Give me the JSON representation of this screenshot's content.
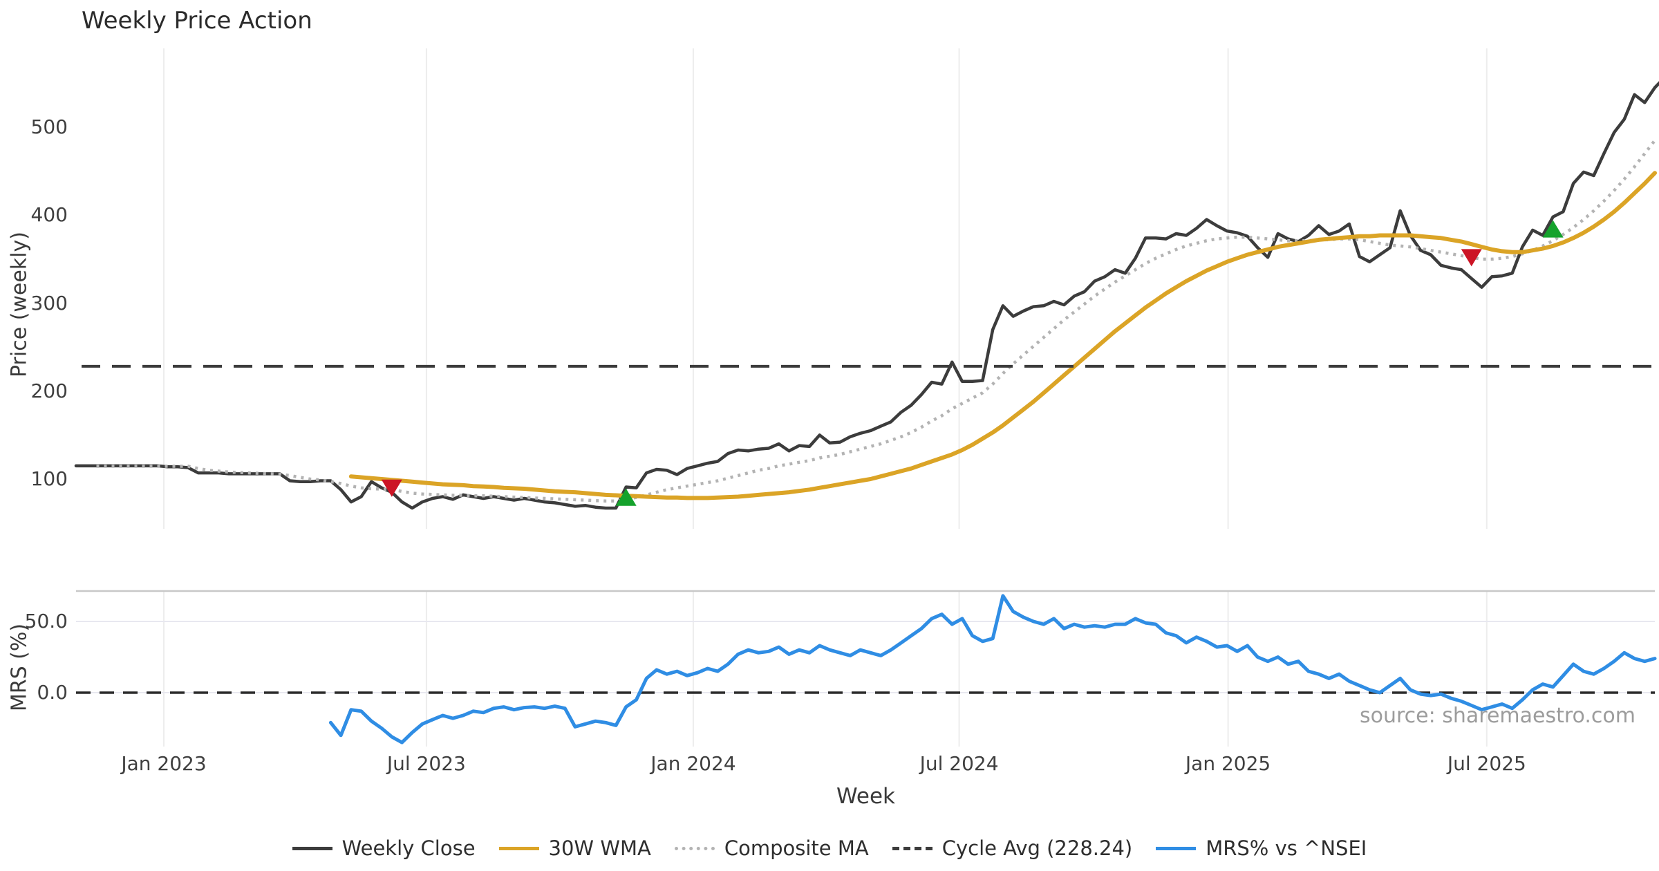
{
  "title": "Weekly Price Action",
  "source": "source: sharemaestro.com",
  "axes": {
    "price_label": "Price (weekly)",
    "mrs_label": "MRS (%)",
    "x_label": "Week",
    "price_ticks": [
      "100",
      "200",
      "300",
      "400",
      "500"
    ],
    "price_tick_values": [
      100,
      200,
      300,
      400,
      500
    ],
    "mrs_ticks": [
      "0.0",
      "50.0"
    ],
    "mrs_tick_values": [
      0,
      50
    ],
    "x_ticks": [
      "Jan 2023",
      "Jul 2023",
      "Jan 2024",
      "Jul 2024",
      "Jan 2025",
      "Jul 2025"
    ],
    "x_tick_weeks": [
      8.62,
      34.4,
      60.6,
      86.7,
      113.1,
      138.5
    ]
  },
  "colors": {
    "close": "#3c3c3c",
    "wma": "#dba426",
    "composite": "#b3b3b3",
    "cycle": "#3c3c3c",
    "mrs": "#2f8de4",
    "buy": "#15a22c",
    "sell": "#cc1425",
    "grid": "#ededed",
    "hgrid": "#e8e8f0",
    "spine": "#c8c8c8",
    "zero_dash": "#2b2b2b"
  },
  "legend": [
    {
      "label": "Weekly Close",
      "color": "#3c3c3c",
      "style": "solid"
    },
    {
      "label": "30W WMA",
      "color": "#dba426",
      "style": "solid"
    },
    {
      "label": "Composite MA",
      "color": "#b3b3b3",
      "style": "dotted"
    },
    {
      "label": "Cycle Avg (228.24)",
      "color": "#3c3c3c",
      "style": "dashed"
    },
    {
      "label": "MRS% vs ^NSEI",
      "color": "#2f8de4",
      "style": "solid"
    }
  ],
  "chart_data": {
    "type": "line",
    "title": "Weekly Price Action",
    "xlabel": "Week",
    "x_range_weeks": 155,
    "panels": [
      {
        "name": "price",
        "ylabel": "Price (weekly)",
        "ylim": [
          60,
          570
        ],
        "yticks": [
          100,
          200,
          300,
          400,
          500
        ],
        "cycle_avg": 228.24,
        "series": [
          {
            "name": "Weekly Close",
            "style": "solid",
            "start_week": 0,
            "values": [
              115,
              115,
              115,
              115,
              115,
              115,
              115,
              115,
              115,
              114,
              114,
              113,
              107,
              107,
              107,
              106,
              106,
              106,
              106,
              106,
              106,
              98,
              97,
              97,
              98,
              98,
              88,
              74,
              80,
              97,
              90,
              85,
              74,
              67,
              74,
              78,
              80,
              77,
              82,
              80,
              78,
              80,
              78,
              76,
              78,
              76,
              74,
              73,
              71,
              69,
              70,
              68,
              67,
              67,
              91,
              90,
              107,
              111,
              110,
              105,
              112,
              115,
              118,
              120,
              129,
              133,
              132,
              134,
              135,
              140,
              132,
              138,
              137,
              150,
              141,
              142,
              148,
              152,
              155,
              160,
              165,
              176,
              184,
              196,
              210,
              208,
              233,
              211,
              211,
              212,
              270,
              297,
              285,
              291,
              296,
              297,
              302,
              298,
              308,
              313,
              325,
              330,
              338,
              334,
              351,
              374,
              374,
              373,
              379,
              377,
              385,
              395,
              388,
              382,
              380,
              376,
              363,
              352,
              379,
              373,
              370,
              377,
              388,
              378,
              382,
              390,
              353,
              347,
              355,
              363,
              405,
              377,
              360,
              355,
              343,
              340,
              338,
              328,
              318,
              330,
              331,
              334,
              364,
              383,
              377,
              398,
              404,
              436,
              449,
              445,
              470,
              494,
              509,
              537,
              528,
              545,
              557
            ]
          },
          {
            "name": "30W WMA",
            "style": "solid",
            "start_week": 27,
            "values": [
              103,
              102,
              101,
              100,
              99,
              98,
              97,
              96,
              95,
              94,
              93.5,
              93,
              92,
              91.5,
              91,
              90,
              89.5,
              89,
              88,
              87,
              86,
              85.5,
              85,
              84,
              83,
              82,
              81.5,
              81,
              80.5,
              80,
              79.5,
              79,
              79,
              78.5,
              78.5,
              78.5,
              79,
              79.5,
              80,
              81,
              82,
              83,
              84,
              85,
              86.5,
              88,
              90,
              92,
              94,
              96,
              98,
              100,
              103,
              106,
              109,
              112,
              116,
              120,
              124,
              128,
              133,
              139,
              146,
              153,
              161,
              170,
              179,
              188,
              198,
              208,
              218,
              228,
              238,
              248,
              258,
              268,
              277,
              286,
              295,
              303,
              311,
              318,
              325,
              331,
              337,
              342,
              347,
              351,
              355,
              358,
              361,
              364,
              366,
              368,
              370,
              372,
              373,
              374,
              375,
              376,
              376,
              377,
              377,
              377,
              377,
              376,
              375,
              374,
              372,
              370,
              367,
              364,
              361,
              359,
              358,
              358,
              360,
              362,
              365,
              369,
              374,
              380,
              387,
              395,
              404,
              414,
              425,
              436,
              448
            ]
          },
          {
            "name": "Composite MA",
            "style": "dotted",
            "start_week": 2,
            "values": [
              114.5,
              114.5,
              114.5,
              114.5,
              114.5,
              114.5,
              114.5,
              114.5,
              114.5,
              114.5,
              112,
              110,
              109,
              108,
              107.5,
              107,
              106.5,
              106,
              105.5,
              104,
              102,
              100,
              99,
              97,
              95,
              92,
              90,
              89,
              88.5,
              88,
              86,
              84,
              83,
              82.5,
              82,
              81.5,
              81.5,
              81,
              81,
              80.5,
              80,
              79.5,
              79,
              78.5,
              78,
              77.5,
              77,
              76.5,
              76,
              75.5,
              75,
              75,
              77,
              79,
              82,
              85,
              88,
              90,
              92,
              94,
              96,
              98,
              101,
              104,
              107,
              110,
              112,
              115,
              117,
              119,
              121,
              124,
              126,
              128,
              131,
              134,
              137,
              140,
              144,
              148,
              153,
              159,
              166,
              172,
              180,
              186,
              192,
              198,
              208,
              220,
              231,
              241,
              251,
              261,
              271,
              281,
              290,
              299,
              308,
              316,
              324,
              331,
              338,
              345,
              351,
              356,
              361,
              365,
              368,
              371,
              373,
              374,
              375,
              375,
              374,
              373,
              372,
              371,
              371,
              371,
              372,
              372,
              373,
              373,
              372,
              370,
              368,
              366,
              365,
              364,
              362,
              360,
              358,
              356,
              354,
              352,
              350,
              350,
              351,
              353,
              356,
              360,
              365,
              371,
              378,
              386,
              395,
              405,
              416,
              428,
              441,
              455,
              470,
              485
            ]
          }
        ],
        "markers": [
          {
            "type": "sell",
            "week": 31,
            "value": 90
          },
          {
            "type": "buy",
            "week": 54,
            "value": 79
          },
          {
            "type": "sell",
            "week": 137,
            "value": 352
          },
          {
            "type": "buy",
            "week": 145,
            "value": 384
          }
        ]
      },
      {
        "name": "mrs",
        "ylabel": "MRS (%)",
        "ylim": [
          -38,
          72
        ],
        "yticks": [
          0,
          50
        ],
        "zero_line": true,
        "series": [
          {
            "name": "MRS% vs ^NSEI",
            "style": "solid",
            "start_week": 25,
            "values": [
              -21,
              -30,
              -12,
              -13,
              -20,
              -25,
              -31,
              -35,
              -28,
              -22,
              -19,
              -16,
              -18,
              -16,
              -13,
              -14,
              -11,
              -10,
              -12,
              -10.5,
              -10,
              -11,
              -9.5,
              -11,
              -24,
              -22,
              -20,
              -21,
              -23,
              -10,
              -5,
              10,
              16,
              13,
              15,
              12,
              14,
              17,
              15,
              20,
              27,
              30,
              28,
              29,
              32,
              27,
              30,
              28,
              33,
              30,
              28,
              26,
              30,
              28,
              26,
              30,
              35,
              40,
              45,
              52,
              55,
              48,
              52,
              40,
              36,
              38,
              68,
              57,
              53,
              50,
              48,
              52,
              45,
              48,
              46,
              47,
              46,
              48,
              48,
              52,
              49,
              48,
              42,
              40,
              35,
              39,
              36,
              32,
              33,
              29,
              33,
              25,
              22,
              25,
              20,
              22,
              15,
              13,
              10,
              13,
              8,
              5,
              2,
              0,
              5,
              10,
              2,
              -1,
              -2,
              -1,
              -4,
              -6,
              -9,
              -12,
              -10,
              -8,
              -11,
              -5,
              2,
              6,
              4,
              12,
              20,
              15,
              13,
              17,
              22,
              28,
              24,
              22,
              24
            ]
          }
        ]
      }
    ]
  }
}
